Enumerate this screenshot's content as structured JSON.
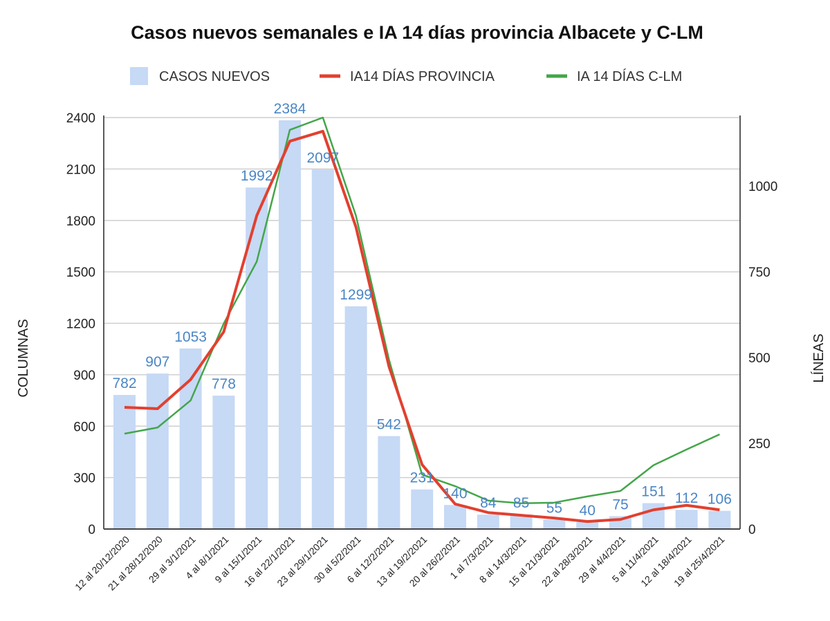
{
  "chart_data": {
    "type": "bar+line",
    "title": "Casos nuevos semanales e IA 14 días provincia Albacete y C-LM",
    "ylabel_left": "COLUMNAS",
    "ylabel_right": "LÍNEAS",
    "ylim_left": [
      0,
      2400
    ],
    "yticks_left": [
      0,
      300,
      600,
      900,
      1200,
      1500,
      1800,
      2100,
      2400
    ],
    "ylim_right": [
      0,
      1200
    ],
    "yticks_right": [
      0,
      250,
      500,
      750,
      1000
    ],
    "grid": true,
    "legend_position": "top",
    "categories": [
      "12 al 20/12/2020",
      "21 al 28/12/2020",
      "29 al 3/1/2021",
      "4 al 8/1/2021",
      "9 al 15/1/2021",
      "16 al 22/1/2021",
      "23 al 29/1/2021",
      "30 al 5/2/2021",
      "6 al 12/2/2021",
      "13 al 19/2/2021",
      "20 al 26/2/2021",
      "1 al 7/3/2021",
      "8 al 14/3/2021",
      "15 al 21/3/2021",
      "22 al 28/3/2021",
      "29 al 4/4/2021",
      "5 al 11/4/2021",
      "12 al 18/4/2021",
      "19 al 25/4/2021"
    ],
    "series": [
      {
        "name": "CASOS NUEVOS",
        "type": "bar",
        "axis": "left",
        "color": "#c6d9f5",
        "values": [
          782,
          907,
          1053,
          778,
          1992,
          2384,
          2097,
          1299,
          542,
          231,
          140,
          84,
          85,
          55,
          40,
          75,
          151,
          112,
          106
        ]
      },
      {
        "name": "IA14 DÍAS PROVINCIA",
        "type": "line",
        "axis": "right",
        "color": "#e2402f",
        "values": [
          355,
          351,
          436,
          575,
          914,
          1131,
          1160,
          881,
          474,
          188,
          73,
          48,
          40,
          32,
          22,
          28,
          56,
          69,
          56
        ]
      },
      {
        "name": "IA 14 DÍAS C-LM",
        "type": "line",
        "axis": "right",
        "color": "#43a649",
        "values": [
          278,
          296,
          375,
          599,
          780,
          1164,
          1200,
          914,
          494,
          159,
          125,
          83,
          75,
          77,
          95,
          111,
          186,
          232,
          276
        ]
      }
    ]
  }
}
